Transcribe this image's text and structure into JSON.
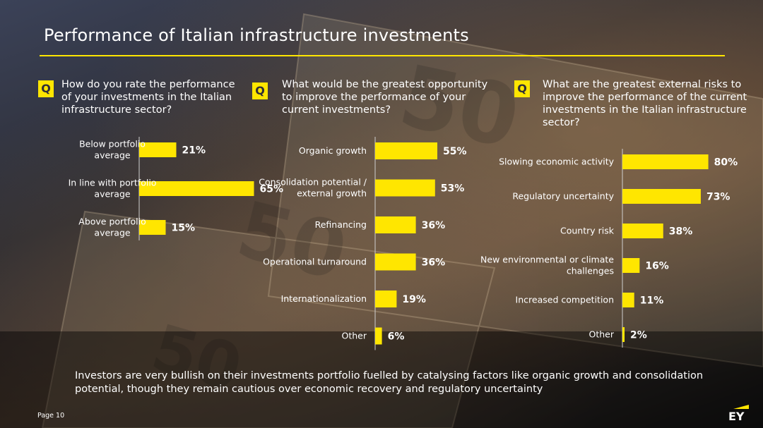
{
  "title": "Performance of Italian infrastructure investments",
  "q_label": "Q",
  "questions": [
    "How do you rate the performance of your investments in the Italian infrastructure sector?",
    "What would be the greatest opportunity to improve the performance of your current investments?",
    "What are the greatest external risks to improve the performance of the current investments in the Italian infrastructure sector?"
  ],
  "chart_data": [
    {
      "type": "bar",
      "orientation": "horizontal",
      "categories": [
        "Below portfolio average",
        "In line with portfolio average",
        "Above portfolio average"
      ],
      "values": [
        21,
        65,
        15
      ],
      "value_suffix": "%",
      "xlim": [
        0,
        100
      ],
      "grid": false,
      "bar_color": "#ffe600"
    },
    {
      "type": "bar",
      "orientation": "horizontal",
      "categories": [
        "Organic growth",
        "Consolidation potential / external growth",
        "Refinancing",
        "Operational turnaround",
        "Internationalization",
        "Other"
      ],
      "values": [
        55,
        53,
        36,
        36,
        19,
        6
      ],
      "value_suffix": "%",
      "xlim": [
        0,
        100
      ],
      "grid": false,
      "bar_color": "#ffe600"
    },
    {
      "type": "bar",
      "orientation": "horizontal",
      "categories": [
        "Slowing economic activity",
        "Regulatory uncertainty",
        "Country risk",
        "New environmental or climate challenges",
        "Increased competition",
        "Other"
      ],
      "values": [
        80,
        73,
        38,
        16,
        11,
        2
      ],
      "value_suffix": "%",
      "xlim": [
        0,
        100
      ],
      "grid": false,
      "bar_color": "#ffe600"
    }
  ],
  "footnote": "Investors are very bullish on their investments portfolio fuelled by catalysing factors like organic growth and consolidation potential, though they remain cautious over economic recovery and regulatory uncertainty",
  "page": "Page 10",
  "logo_text": "EY",
  "colors": {
    "accent": "#ffe600",
    "text": "#ffffff",
    "logo_bg": "#2e2e38"
  }
}
